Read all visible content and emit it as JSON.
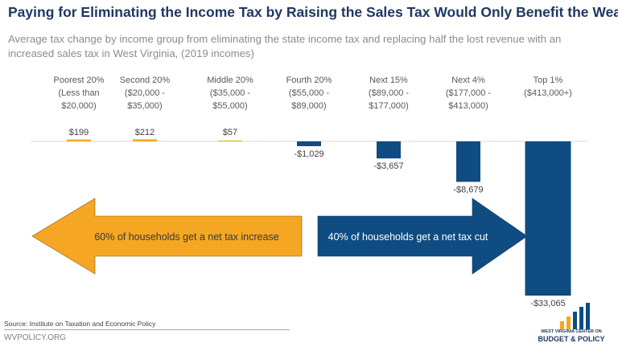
{
  "header": {
    "title": "Paying for Eliminating the Income Tax by Raising the Sales Tax Would Only Benefit the Wealthy",
    "subtitle": "Average tax change by income group from eliminating the state income tax and replacing half the lost revenue with an increased sales tax in West Virginia, (2019 incomes)"
  },
  "chart_data": {
    "type": "bar",
    "categories": [
      {
        "name": "Poorest 20%",
        "range": [
          "(Less than",
          "$20,000)"
        ]
      },
      {
        "name": "Second 20%",
        "range": [
          "($20,000 -",
          "$35,000)"
        ]
      },
      {
        "name": "Middle 20%",
        "range": [
          "($35,000 -",
          "$55,000)"
        ]
      },
      {
        "name": "Fourth 20%",
        "range": [
          "($55,000 -",
          "$89,000)"
        ]
      },
      {
        "name": "Next 15%",
        "range": [
          "($89,000 -",
          "$177,000)"
        ]
      },
      {
        "name": "Next 4%",
        "range": [
          "($177,000 -",
          "$413,000)"
        ]
      },
      {
        "name": "Top 1%",
        "range": [
          "($413,000+)"
        ]
      }
    ],
    "values": [
      199,
      212,
      57,
      -1029,
      -3657,
      -8679,
      -33065
    ],
    "value_labels": [
      "$199",
      "$212",
      "$57",
      "-$1,029",
      "-$3,657",
      "-$8,679",
      "-$33,065"
    ],
    "positive_color": "#f5a623",
    "negative_color": "#0f4c81",
    "legend": "none",
    "grid": false
  },
  "arrows": {
    "left": {
      "label": "60% of households get a net tax increase",
      "color": "#f5a623"
    },
    "right": {
      "label": "40% of households get a net tax cut",
      "color": "#0f4c81"
    }
  },
  "footer": {
    "source": "Source: Institute on Taxation and Economic Policy",
    "site": "WVPOLICY.ORG",
    "logo_line1": "WEST VIRGINIA CENTER ON",
    "logo_line2": "BUDGET & POLICY"
  },
  "colors": {
    "title": "#1f3864",
    "logo_bars": [
      "#f5a623",
      "#f5a623",
      "#0f4c81",
      "#0f4c81",
      "#0f4c81"
    ]
  }
}
